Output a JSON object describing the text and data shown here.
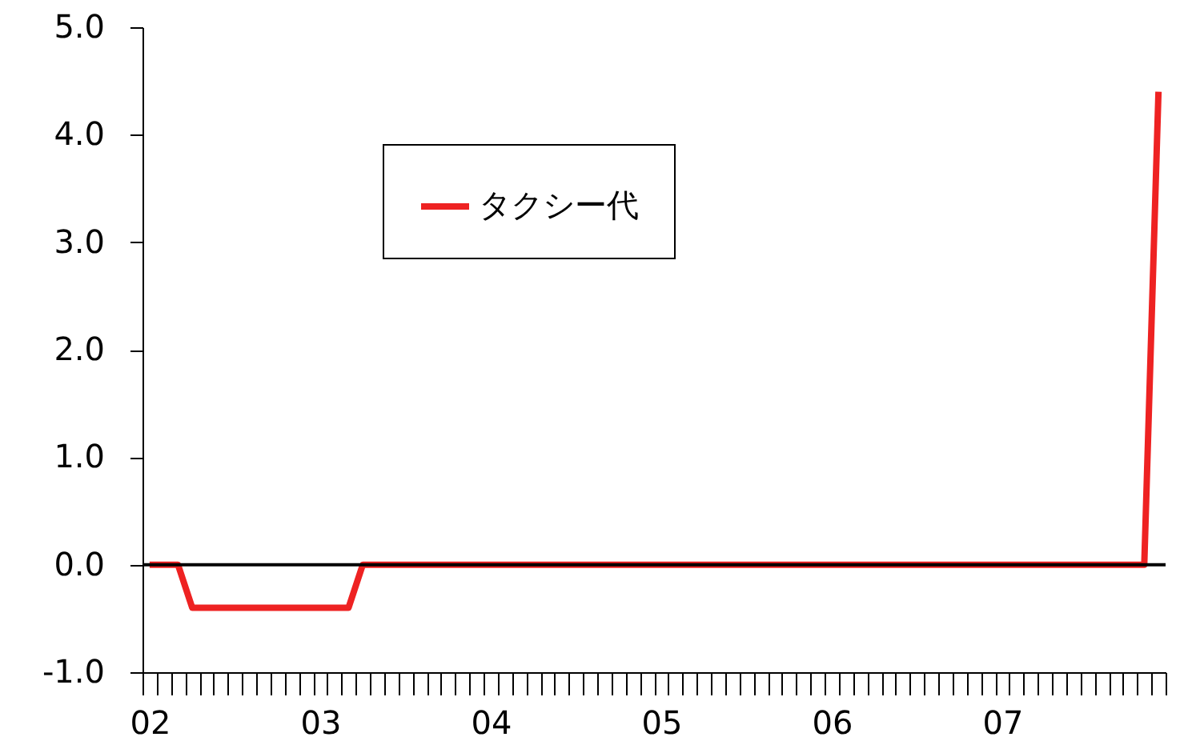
{
  "chart_data": {
    "type": "line",
    "categories": [
      "02",
      null,
      null,
      null,
      null,
      null,
      null,
      null,
      null,
      null,
      null,
      null,
      "03",
      null,
      null,
      null,
      null,
      null,
      null,
      null,
      null,
      null,
      null,
      null,
      "04",
      null,
      null,
      null,
      null,
      null,
      null,
      null,
      null,
      null,
      null,
      null,
      "05",
      null,
      null,
      null,
      null,
      null,
      null,
      null,
      null,
      null,
      null,
      null,
      "06",
      null,
      null,
      null,
      null,
      null,
      null,
      null,
      null,
      null,
      null,
      null,
      "07",
      null,
      null,
      null,
      null,
      null,
      null,
      null,
      null,
      null,
      null,
      null
    ],
    "series": [
      {
        "name": "タクシー代",
        "color": "#ee2222",
        "values": [
          0,
          0,
          0,
          -0.4,
          -0.4,
          -0.4,
          -0.4,
          -0.4,
          -0.4,
          -0.4,
          -0.4,
          -0.4,
          -0.4,
          -0.4,
          -0.4,
          0,
          0,
          0,
          0,
          0,
          0,
          0,
          0,
          0,
          0,
          0,
          0,
          0,
          0,
          0,
          0,
          0,
          0,
          0,
          0,
          0,
          0,
          0,
          0,
          0,
          0,
          0,
          0,
          0,
          0,
          0,
          0,
          0,
          0,
          0,
          0,
          0,
          0,
          0,
          0,
          0,
          0,
          0,
          0,
          0,
          0,
          0,
          0,
          0,
          0,
          0,
          0,
          0,
          0,
          0,
          0,
          4.4
        ]
      }
    ],
    "ylim": [
      -1,
      5
    ],
    "yticks": [
      {
        "value": -1,
        "label": "-1.0"
      },
      {
        "value": 0,
        "label": "0.0"
      },
      {
        "value": 1,
        "label": "1.0"
      },
      {
        "value": 2,
        "label": "2.0"
      },
      {
        "value": 3,
        "label": "3.0"
      },
      {
        "value": 4,
        "label": "4.0"
      },
      {
        "value": 5,
        "label": "5.0"
      }
    ],
    "ref_lines": [
      {
        "axis": "y",
        "value": 0,
        "color": "#000000"
      }
    ],
    "grid": false,
    "legend": "top left",
    "marker": "none",
    "line_style": "solid"
  }
}
